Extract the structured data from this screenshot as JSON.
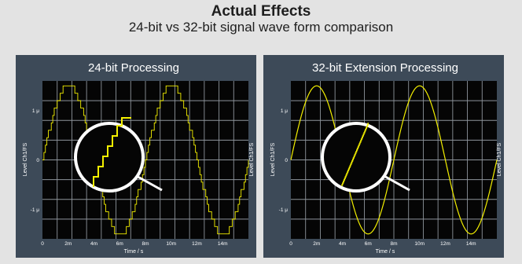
{
  "title": "Actual Effects",
  "subtitle": "24-bit vs 32-bit signal wave form comparison",
  "colors": {
    "page_background": "#e3e3e3",
    "panel_background": "#3d4a58",
    "plot_background": "#050505",
    "grid": "#8e959c",
    "signal": "#f4f000",
    "text_light": "#ffffff"
  },
  "chart_data": [
    {
      "type": "line",
      "title": "24-bit Processing",
      "xlabel": "Time / s",
      "ylabel": "Level Ch1/FS",
      "xlim": [
        0,
        0.016
      ],
      "ylim": [
        -1.6,
        1.6
      ],
      "xticks": [
        "0",
        "2m",
        "4m",
        "6m",
        "8m",
        "10m",
        "12m",
        "14m"
      ],
      "yticks": [
        "1 μ",
        "0",
        "-1 μ"
      ],
      "ytick_values": [
        1,
        0,
        -1
      ],
      "grid": true,
      "series": [
        {
          "style": "stepped",
          "amplitude": 1.5,
          "period": 0.008,
          "steps_per_period": 70,
          "x": [
            0,
            0.001,
            0.002,
            0.003,
            0.004,
            0.005,
            0.006,
            0.007,
            0.008,
            0.009,
            0.01,
            0.011,
            0.012,
            0.013,
            0.014,
            0.015,
            0.016
          ],
          "y": [
            0,
            1.06,
            1.5,
            1.06,
            0,
            -1.06,
            -1.5,
            -1.06,
            0,
            1.06,
            1.5,
            1.06,
            0,
            -1.06,
            -1.5,
            -1.06,
            0
          ]
        }
      ],
      "inset": {
        "description_shape": "magnifier",
        "content": "magnified staircase"
      }
    },
    {
      "type": "line",
      "title": "32-bit Extension Processing",
      "xlabel": "Time / s",
      "ylabel": "Level Ch1/FS",
      "xlim": [
        0,
        0.016
      ],
      "ylim": [
        -1.6,
        1.6
      ],
      "xticks": [
        "0",
        "2m",
        "4m",
        "6m",
        "8m",
        "10m",
        "12m",
        "14m"
      ],
      "yticks": [
        "1 μ",
        "0",
        "-1 μ"
      ],
      "ytick_values": [
        1,
        0,
        -1
      ],
      "grid": true,
      "series": [
        {
          "style": "smooth",
          "amplitude": 1.5,
          "period": 0.008,
          "x": [
            0,
            0.001,
            0.002,
            0.003,
            0.004,
            0.005,
            0.006,
            0.007,
            0.008,
            0.009,
            0.01,
            0.011,
            0.012,
            0.013,
            0.014,
            0.015,
            0.016
          ],
          "y": [
            0,
            1.06,
            1.5,
            1.06,
            0,
            -1.06,
            -1.5,
            -1.06,
            0,
            1.06,
            1.5,
            1.06,
            0,
            -1.06,
            -1.5,
            -1.06,
            0
          ]
        }
      ],
      "inset": {
        "description_shape": "magnifier",
        "content": "magnified fine steps"
      }
    }
  ]
}
